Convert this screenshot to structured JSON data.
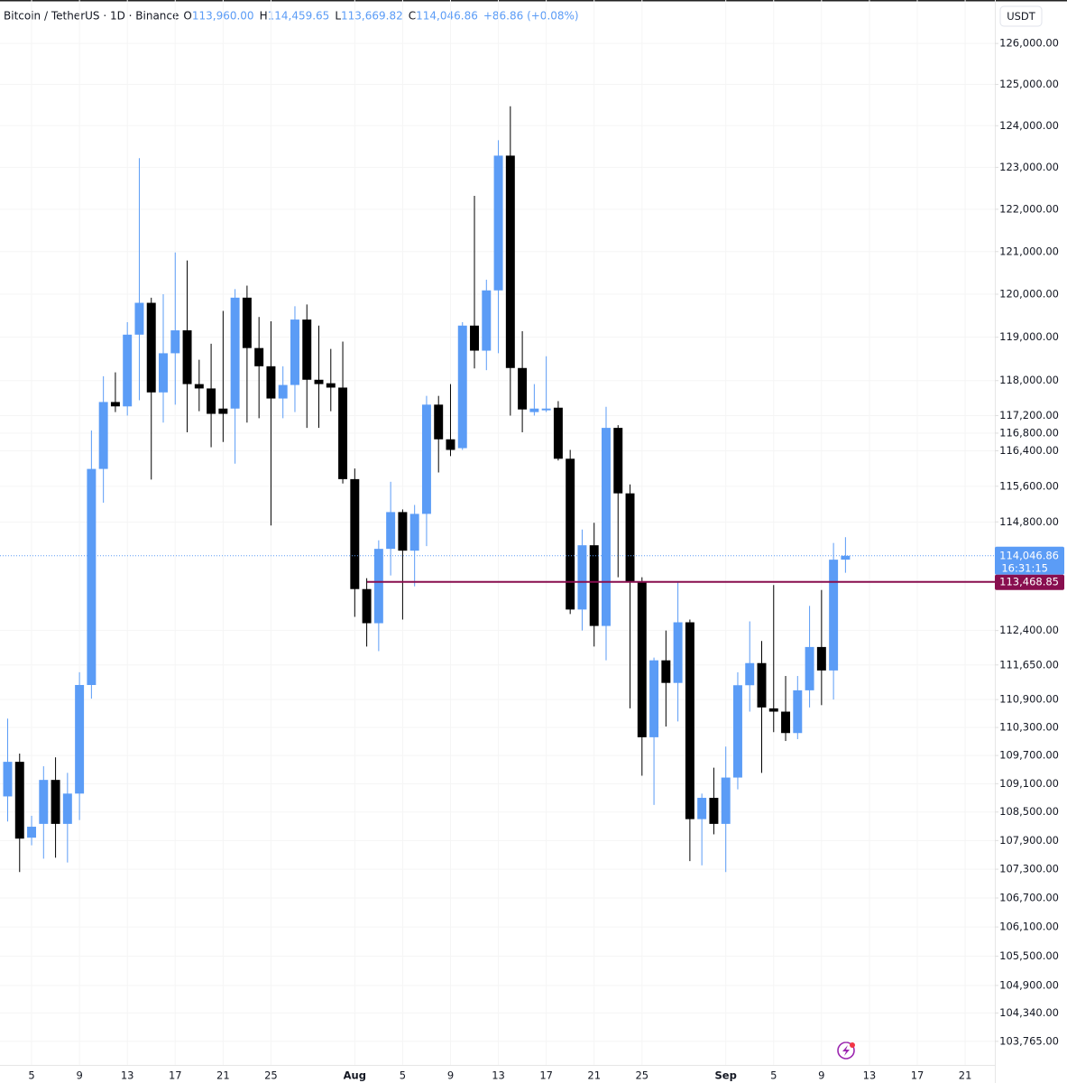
{
  "chart_data": {
    "type": "candlestick",
    "header": {
      "title": "Bitcoin / TetherUS · 1D · Binance",
      "ohlc": [
        {
          "key": "O",
          "value": "113,960.00"
        },
        {
          "key": "H",
          "value": "114,459.65"
        },
        {
          "key": "L",
          "value": "113,669.82"
        },
        {
          "key": "C",
          "value": "114,046.86"
        }
      ],
      "change": "+86.86 (+0.08%)"
    },
    "currency": "USDT",
    "categories": [
      "Jul 3",
      "Jul 4",
      "Jul 5",
      "Jul 6",
      "Jul 7",
      "Jul 8",
      "Jul 9",
      "Jul 10",
      "Jul 11",
      "Jul 12",
      "Jul 13",
      "Jul 14",
      "Jul 15",
      "Jul 16",
      "Jul 17",
      "Jul 18",
      "Jul 19",
      "Jul 20",
      "Jul 21",
      "Jul 22",
      "Jul 23",
      "Jul 24",
      "Jul 25",
      "Jul 26",
      "Jul 27",
      "Jul 28",
      "Jul 29",
      "Jul 30",
      "Jul 31",
      "Aug 1",
      "Aug 2",
      "Aug 3",
      "Aug 4",
      "Aug 5",
      "Aug 6",
      "Aug 7",
      "Aug 8",
      "Aug 9",
      "Aug 10",
      "Aug 11",
      "Aug 12",
      "Aug 13",
      "Aug 14",
      "Aug 15",
      "Aug 16",
      "Aug 17",
      "Aug 18",
      "Aug 19",
      "Aug 20",
      "Aug 21",
      "Aug 22",
      "Aug 23",
      "Aug 24",
      "Aug 25",
      "Aug 26",
      "Aug 27",
      "Aug 28",
      "Aug 29",
      "Aug 30",
      "Aug 31",
      "Sep 1",
      "Sep 2",
      "Sep 3",
      "Sep 4",
      "Sep 5",
      "Sep 6",
      "Sep 7",
      "Sep 8",
      "Sep 9",
      "Sep 10",
      "Sep 11"
    ],
    "open": [
      108830,
      109565,
      107960,
      108250,
      109180,
      108250,
      108890,
      111215,
      115990,
      117510,
      117410,
      119060,
      119800,
      117730,
      118630,
      119160,
      117920,
      117820,
      117360,
      117360,
      119920,
      118750,
      118330,
      117590,
      117900,
      119410,
      118020,
      117940,
      117840,
      115760,
      113310,
      112560,
      114200,
      115020,
      114160,
      114980,
      117450,
      116660,
      116460,
      119270,
      118690,
      120090,
      123280,
      118290,
      117280,
      117320,
      117380,
      116220,
      112860,
      114280,
      112500,
      116920,
      115440,
      113460,
      110090,
      111750,
      111260,
      112580,
      108350,
      108800,
      108250,
      109230,
      111210,
      111690,
      110710,
      110640,
      110180,
      111100,
      112040,
      111530,
      113960
    ],
    "high": [
      110490,
      109740,
      108420,
      109470,
      109660,
      109330,
      111490,
      116860,
      118100,
      118190,
      119350,
      123220,
      119920,
      120000,
      120980,
      120790,
      118480,
      118850,
      119610,
      120120,
      120200,
      119470,
      119370,
      118330,
      119720,
      119760,
      119270,
      118730,
      118900,
      116000,
      113550,
      114390,
      115700,
      115080,
      115180,
      117650,
      117650,
      117920,
      119350,
      122320,
      120340,
      123650,
      124470,
      119140,
      117920,
      118560,
      117530,
      116420,
      114630,
      114780,
      117400,
      116980,
      115640,
      113570,
      111810,
      112400,
      113450,
      112640,
      108890,
      109440,
      109890,
      111490,
      112600,
      112170,
      113400,
      111410,
      111410,
      112940,
      113290,
      114330,
      114459.65
    ],
    "low": [
      108300,
      107240,
      107800,
      107520,
      107540,
      107440,
      108330,
      110920,
      115230,
      117280,
      117200,
      117550,
      115750,
      117040,
      117450,
      116820,
      117300,
      116480,
      116600,
      116110,
      117040,
      117140,
      114720,
      117140,
      117280,
      116920,
      116920,
      117300,
      115660,
      112700,
      112050,
      111950,
      113610,
      112640,
      113370,
      114260,
      115910,
      116280,
      116420,
      118280,
      118240,
      118630,
      117200,
      116820,
      117200,
      117280,
      116180,
      112760,
      112400,
      112050,
      111750,
      113570,
      110710,
      109270,
      108650,
      110320,
      110430,
      107470,
      107380,
      108030,
      107240,
      108980,
      110640,
      109330,
      110200,
      110010,
      110050,
      110730,
      110780,
      110900,
      113669.82
    ],
    "close": [
      109565,
      107940,
      108190,
      109180,
      108250,
      108890,
      111215,
      115990,
      117510,
      117410,
      119060,
      119800,
      117730,
      118630,
      119160,
      117920,
      117820,
      117240,
      117240,
      119920,
      118750,
      118330,
      117590,
      117900,
      119410,
      118020,
      117920,
      117840,
      115760,
      113310,
      112560,
      114200,
      115020,
      114160,
      114980,
      117450,
      116660,
      116420,
      119270,
      118690,
      120090,
      123280,
      118290,
      117340,
      117360,
      117360,
      116220,
      112860,
      114280,
      112500,
      116920,
      115440,
      113460,
      110090,
      111750,
      111260,
      112580,
      108350,
      108800,
      108250,
      109230,
      111210,
      111690,
      110730,
      110640,
      110180,
      111100,
      112040,
      111530,
      113960,
      114046.86
    ],
    "up_color": "#5b9cf6",
    "down_color": "#000000",
    "log_scale": true,
    "grid": true,
    "ylim": [
      103290,
      127070
    ],
    "yticks": [
      {
        "value": 126000,
        "label": "126,000.00"
      },
      {
        "value": 125000,
        "label": "125,000.00"
      },
      {
        "value": 124000,
        "label": "124,000.00"
      },
      {
        "value": 123000,
        "label": "123,000.00"
      },
      {
        "value": 122000,
        "label": "122,000.00"
      },
      {
        "value": 121000,
        "label": "121,000.00"
      },
      {
        "value": 120000,
        "label": "120,000.00"
      },
      {
        "value": 119000,
        "label": "119,000.00"
      },
      {
        "value": 118000,
        "label": "118,000.00"
      },
      {
        "value": 117200,
        "label": "117,200.00"
      },
      {
        "value": 116800,
        "label": "116,800.00"
      },
      {
        "value": 116400,
        "label": "116,400.00"
      },
      {
        "value": 115600,
        "label": "115,600.00"
      },
      {
        "value": 114800,
        "label": "114,800.00"
      },
      {
        "value": 112400,
        "label": "112,400.00"
      },
      {
        "value": 111650,
        "label": "111,650.00"
      },
      {
        "value": 110900,
        "label": "110,900.00"
      },
      {
        "value": 110300,
        "label": "110,300.00"
      },
      {
        "value": 109700,
        "label": "109,700.00"
      },
      {
        "value": 109100,
        "label": "109,100.00"
      },
      {
        "value": 108500,
        "label": "108,500.00"
      },
      {
        "value": 107900,
        "label": "107,900.00"
      },
      {
        "value": 107300,
        "label": "107,300.00"
      },
      {
        "value": 106700,
        "label": "106,700.00"
      },
      {
        "value": 106100,
        "label": "106,100.00"
      },
      {
        "value": 105500,
        "label": "105,500.00"
      },
      {
        "value": 104900,
        "label": "104,900.00"
      },
      {
        "value": 104340,
        "label": "104,340.00"
      },
      {
        "value": 103765,
        "label": "103,765.00"
      }
    ],
    "xlim": [
      -0.64,
      82.48
    ],
    "xticks": [
      {
        "value": 2,
        "label": "5"
      },
      {
        "value": 6,
        "label": "9"
      },
      {
        "value": 10,
        "label": "13"
      },
      {
        "value": 14,
        "label": "17"
      },
      {
        "value": 18,
        "label": "21"
      },
      {
        "value": 22,
        "label": "25"
      },
      {
        "value": 29,
        "label": "Aug"
      },
      {
        "value": 33,
        "label": "5"
      },
      {
        "value": 37,
        "label": "9"
      },
      {
        "value": 41,
        "label": "13"
      },
      {
        "value": 45,
        "label": "17"
      },
      {
        "value": 49,
        "label": "21"
      },
      {
        "value": 53,
        "label": "25"
      },
      {
        "value": 60,
        "label": "Sep"
      },
      {
        "value": 64,
        "label": "5"
      },
      {
        "value": 68,
        "label": "9"
      },
      {
        "value": 72,
        "label": "13"
      },
      {
        "value": 76,
        "label": "17"
      },
      {
        "value": 80,
        "label": "21"
      }
    ],
    "last_price": {
      "value": 114046.86,
      "label": "114,046.86",
      "countdown": "16:31:15",
      "color": "#5b9cf6"
    },
    "hline": {
      "value": 113468.85,
      "label": "113,468.85",
      "color": "#880e4f"
    }
  }
}
